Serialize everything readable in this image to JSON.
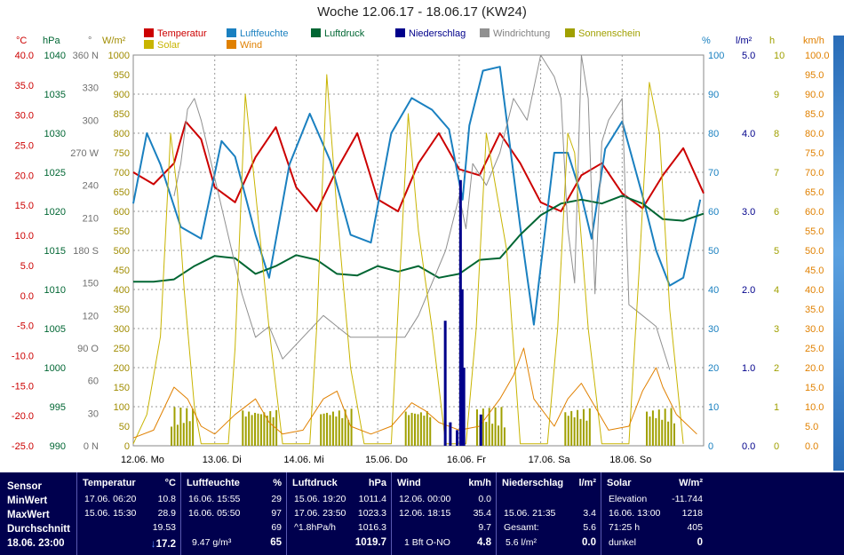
{
  "title": "Woche 12.06.17 - 18.06.17 (KW24)",
  "legend": [
    {
      "label": "Temperatur",
      "color": "#cc0000"
    },
    {
      "label": "Solar",
      "color": "#c8b400"
    },
    {
      "label": "Luftfeuchte",
      "color": "#1a80c0"
    },
    {
      "label": "Wind",
      "color": "#e08000"
    },
    {
      "label": "Luftdruck",
      "color": "#006633"
    },
    {
      "label": "Niederschlag",
      "color": "#00008b"
    },
    {
      "label": "Windrichtung",
      "color": "#909090"
    },
    {
      "label": "Sonnenschein",
      "color": "#a0a000"
    }
  ],
  "units": {
    "temp": "°C",
    "press": "hPa",
    "dir": "°",
    "solar": "W/m²",
    "hum": "%",
    "rain": "l/m²",
    "sun": "h",
    "wind": "km/h"
  },
  "axes": {
    "temp": [
      "40.0",
      "35.0",
      "30.0",
      "25.0",
      "20.0",
      "15.0",
      "10.0",
      "5.0",
      "0.0",
      "-5.0",
      "-10.0",
      "-15.0",
      "-20.0",
      "-25.0"
    ],
    "press": [
      "1040",
      "1035",
      "1030",
      "1025",
      "1020",
      "1015",
      "1010",
      "1005",
      "1000",
      "995",
      "990"
    ],
    "dir": [
      "360 N",
      "330",
      "300",
      "270 W",
      "240",
      "210",
      "180 S",
      "150",
      "120",
      "90 O",
      "60",
      "30",
      "0 N"
    ],
    "solar": [
      "1000",
      "950",
      "900",
      "850",
      "800",
      "750",
      "700",
      "650",
      "600",
      "550",
      "500",
      "450",
      "400",
      "350",
      "300",
      "250",
      "200",
      "150",
      "100",
      "50",
      "0"
    ],
    "hum": [
      "100",
      "90",
      "80",
      "70",
      "60",
      "50",
      "40",
      "30",
      "20",
      "10",
      "0"
    ],
    "rain": [
      "5.0",
      "4.0",
      "3.0",
      "2.0",
      "1.0",
      "0.0"
    ],
    "sun": [
      "10",
      "9",
      "8",
      "7",
      "6",
      "5",
      "4",
      "3",
      "2",
      "1",
      "0"
    ],
    "wind": [
      "100.0",
      "95.0",
      "90.0",
      "85.0",
      "80.0",
      "75.0",
      "70.0",
      "65.0",
      "60.0",
      "55.0",
      "50.0",
      "45.0",
      "40.0",
      "35.0",
      "30.0",
      "25.0",
      "20.0",
      "15.0",
      "10.0",
      "5.0",
      "0.0"
    ]
  },
  "days": [
    "12.06. Mo",
    "13.06. Di",
    "14.06. Mi",
    "15.06. Do",
    "16.06. Fr",
    "17.06. Sa",
    "18.06. So"
  ],
  "chart_data": {
    "type": "line",
    "x_unit": "hours since 12.06. 00:00",
    "ylim": {
      "temp": [
        -25,
        40
      ],
      "press": [
        990,
        1040
      ],
      "dir": [
        0,
        360
      ],
      "solar": [
        0,
        1000
      ],
      "hum": [
        0,
        100
      ],
      "rain": [
        0,
        5
      ],
      "sun": [
        0,
        10
      ],
      "wind": [
        0,
        100
      ]
    },
    "grid": true,
    "series": [
      {
        "name": "Temperatur",
        "axis": "temp",
        "color": "#cc0000",
        "points": [
          [
            0,
            20.5
          ],
          [
            6,
            18.5
          ],
          [
            12,
            22
          ],
          [
            15.5,
            28.9
          ],
          [
            20,
            26
          ],
          [
            24,
            18
          ],
          [
            30,
            15.5
          ],
          [
            36,
            23
          ],
          [
            42,
            28
          ],
          [
            48,
            18
          ],
          [
            54,
            14
          ],
          [
            60,
            21
          ],
          [
            66,
            27
          ],
          [
            72,
            16
          ],
          [
            78,
            14
          ],
          [
            84,
            22
          ],
          [
            90,
            27
          ],
          [
            96,
            21
          ],
          [
            102,
            20
          ],
          [
            108,
            27
          ],
          [
            114,
            22
          ],
          [
            120,
            15.5
          ],
          [
            126,
            14
          ],
          [
            132,
            20
          ],
          [
            138,
            22
          ],
          [
            144,
            17
          ],
          [
            150,
            14.5
          ],
          [
            156,
            20
          ],
          [
            162,
            24.5
          ],
          [
            168,
            17
          ]
        ]
      },
      {
        "name": "Luftfeuchte",
        "axis": "hum",
        "color": "#1a80c0",
        "points": [
          [
            0,
            62
          ],
          [
            4,
            80
          ],
          [
            8,
            72
          ],
          [
            14,
            56
          ],
          [
            20,
            53
          ],
          [
            26,
            78
          ],
          [
            30,
            74
          ],
          [
            36,
            54
          ],
          [
            40,
            43
          ],
          [
            46,
            72
          ],
          [
            52,
            85
          ],
          [
            58,
            73
          ],
          [
            64,
            54
          ],
          [
            70,
            52
          ],
          [
            76,
            80
          ],
          [
            82,
            89
          ],
          [
            88,
            86
          ],
          [
            93,
            81
          ],
          [
            97,
            63
          ],
          [
            99,
            82
          ],
          [
            103,
            96
          ],
          [
            108,
            97
          ],
          [
            114,
            56
          ],
          [
            118,
            31
          ],
          [
            124,
            75
          ],
          [
            128,
            75
          ],
          [
            132,
            64
          ],
          [
            135,
            53
          ],
          [
            139,
            76
          ],
          [
            144,
            83
          ],
          [
            150,
            64
          ],
          [
            154,
            50
          ],
          [
            158,
            41
          ],
          [
            162,
            43
          ],
          [
            167,
            63
          ]
        ]
      },
      {
        "name": "Luftdruck",
        "axis": "press",
        "color": "#006633",
        "points": [
          [
            0,
            1011
          ],
          [
            6,
            1011
          ],
          [
            12,
            1011.3
          ],
          [
            18,
            1013
          ],
          [
            24,
            1014.3
          ],
          [
            30,
            1014
          ],
          [
            36,
            1012
          ],
          [
            42,
            1013
          ],
          [
            48,
            1014.4
          ],
          [
            54,
            1013.8
          ],
          [
            60,
            1012
          ],
          [
            66,
            1011.8
          ],
          [
            72,
            1013
          ],
          [
            78,
            1012.3
          ],
          [
            84,
            1013
          ],
          [
            90,
            1011.5
          ],
          [
            96,
            1012
          ],
          [
            102,
            1013.8
          ],
          [
            108,
            1014
          ],
          [
            114,
            1017
          ],
          [
            120,
            1019.5
          ],
          [
            126,
            1021
          ],
          [
            132,
            1021.5
          ],
          [
            138,
            1021
          ],
          [
            144,
            1022
          ],
          [
            150,
            1021
          ],
          [
            156,
            1019
          ],
          [
            162,
            1018.8
          ],
          [
            168,
            1019.7
          ]
        ]
      },
      {
        "name": "Windrichtung",
        "axis": "dir",
        "color": "#909090",
        "points": [
          [
            12,
            230
          ],
          [
            14,
            260
          ],
          [
            16,
            310
          ],
          [
            18,
            320
          ],
          [
            20,
            300
          ],
          [
            32,
            140
          ],
          [
            36,
            100
          ],
          [
            40,
            110
          ],
          [
            44,
            80
          ],
          [
            56,
            120
          ],
          [
            60,
            110
          ],
          [
            64,
            100
          ],
          [
            80,
            100
          ],
          [
            84,
            120
          ],
          [
            92,
            180
          ],
          [
            96,
            230
          ],
          [
            98,
            200
          ],
          [
            100,
            260
          ],
          [
            104,
            240
          ],
          [
            108,
            270
          ],
          [
            112,
            320
          ],
          [
            116,
            300
          ],
          [
            120,
            360
          ],
          [
            124,
            340
          ],
          [
            126,
            320
          ],
          [
            128,
            200
          ],
          [
            130,
            150
          ],
          [
            132,
            360
          ],
          [
            134,
            320
          ],
          [
            136,
            140
          ],
          [
            138,
            280
          ],
          [
            140,
            300
          ],
          [
            144,
            320
          ],
          [
            146,
            130
          ],
          [
            150,
            120
          ],
          [
            154,
            110
          ],
          [
            158,
            70
          ]
        ]
      },
      {
        "name": "Solar",
        "axis": "solar",
        "color": "#c8b400",
        "points": [
          [
            0,
            5
          ],
          [
            4,
            80
          ],
          [
            8,
            280
          ],
          [
            11,
            800
          ],
          [
            13,
            650
          ],
          [
            15,
            400
          ],
          [
            18,
            100
          ],
          [
            20,
            5
          ],
          [
            28,
            5
          ],
          [
            30,
            250
          ],
          [
            33,
            900
          ],
          [
            36,
            650
          ],
          [
            40,
            300
          ],
          [
            44,
            5
          ],
          [
            52,
            5
          ],
          [
            54,
            300
          ],
          [
            57,
            950
          ],
          [
            60,
            600
          ],
          [
            64,
            200
          ],
          [
            68,
            5
          ],
          [
            76,
            5
          ],
          [
            78,
            350
          ],
          [
            81,
            850
          ],
          [
            84,
            550
          ],
          [
            88,
            300
          ],
          [
            92,
            5
          ],
          [
            98,
            5
          ],
          [
            101,
            300
          ],
          [
            104,
            800
          ],
          [
            107,
            650
          ],
          [
            110,
            500
          ],
          [
            114,
            5
          ],
          [
            122,
            5
          ],
          [
            125,
            300
          ],
          [
            128,
            800
          ],
          [
            130,
            750
          ],
          [
            134,
            300
          ],
          [
            138,
            5
          ],
          [
            146,
            5
          ],
          [
            149,
            450
          ],
          [
            152,
            930
          ],
          [
            155,
            800
          ],
          [
            158,
            350
          ],
          [
            162,
            5
          ]
        ]
      },
      {
        "name": "Wind",
        "axis": "wind",
        "color": "#e08000",
        "points": [
          [
            0,
            2
          ],
          [
            6,
            4
          ],
          [
            12,
            15
          ],
          [
            16,
            12
          ],
          [
            20,
            5
          ],
          [
            24,
            3
          ],
          [
            30,
            8
          ],
          [
            36,
            12
          ],
          [
            40,
            6
          ],
          [
            44,
            3
          ],
          [
            50,
            4
          ],
          [
            56,
            12
          ],
          [
            60,
            14
          ],
          [
            64,
            5
          ],
          [
            70,
            3
          ],
          [
            76,
            5
          ],
          [
            82,
            11
          ],
          [
            86,
            9
          ],
          [
            90,
            6
          ],
          [
            96,
            4
          ],
          [
            102,
            5
          ],
          [
            108,
            12
          ],
          [
            112,
            18
          ],
          [
            115,
            25
          ],
          [
            118,
            12
          ],
          [
            124,
            5
          ],
          [
            128,
            12
          ],
          [
            132,
            16
          ],
          [
            136,
            10
          ],
          [
            140,
            4
          ],
          [
            146,
            5
          ],
          [
            150,
            14
          ],
          [
            154,
            20
          ],
          [
            156,
            15
          ],
          [
            160,
            8
          ],
          [
            166,
            3
          ]
        ]
      }
    ],
    "rain_bars": [
      [
        91.5,
        1.6
      ],
      [
        93,
        0.3
      ],
      [
        95,
        0.2
      ],
      [
        96,
        3.4
      ],
      [
        96.5,
        2.0
      ],
      [
        97,
        1.0
      ],
      [
        102,
        0.4
      ]
    ],
    "sunshine_bars": {
      "hours": [
        [
          11,
          18,
          1
        ],
        [
          32,
          42,
          1
        ],
        [
          55,
          64,
          1
        ],
        [
          80,
          88,
          1
        ],
        [
          101,
          110,
          1
        ],
        [
          127,
          135,
          1
        ],
        [
          151,
          160,
          1
        ]
      ]
    }
  },
  "table": {
    "labels": {
      "sensor": "Sensor",
      "min": "MinWert",
      "max": "MaxWert",
      "avg": "Durchschnitt",
      "now": "18.06. 23:00"
    },
    "temp": {
      "head": "Temperatur",
      "unit": "°C",
      "min_t": "17.06. 06:20",
      "min_v": "10.8",
      "max_t": "15.06. 15:30",
      "max_v": "28.9",
      "avg": "19.53",
      "now": "17.2"
    },
    "hum": {
      "head": "Luftfeuchte",
      "unit": "%",
      "min_t": "16.06. 15:55",
      "min_v": "29",
      "max_t": "16.06. 05:50",
      "max_v": "97",
      "avg": "69",
      "now_extra": "9.47 g/m³",
      "now": "65"
    },
    "press": {
      "head": "Luftdruck",
      "unit": "hPa",
      "min_t": "15.06. 19:20",
      "min_v": "1011.4",
      "max_t": "17.06. 23:50",
      "max_v": "1023.3",
      "avg_t": "^1.8hPa/h",
      "avg": "1016.3",
      "now": "1019.7"
    },
    "wind": {
      "head": "Wind",
      "unit": "km/h",
      "min_t": "12.06. 00:00",
      "min_v": "0.0",
      "max_t": "12.06. 18:15",
      "max_v": "35.4",
      "avg": "9.7",
      "now_extra": "1 Bft O-NO",
      "now": "4.8"
    },
    "rain": {
      "head": "Niederschlag",
      "unit": "l/m²",
      "max_t": "15.06. 21:35",
      "max_v": "3.4",
      "avg_t": "Gesamt:",
      "avg": "5.6",
      "now_extra": "5.6 l/m²",
      "now": "0.0"
    },
    "solar": {
      "head": "Solar",
      "unit": "W/m²",
      "min_t": "Elevation",
      "min_v": "-11.744",
      "max_t": "16.06. 13:00",
      "max_v": "1218",
      "avg_t": "71:25 h",
      "avg": "405",
      "now_extra": "dunkel",
      "now": "0"
    }
  }
}
